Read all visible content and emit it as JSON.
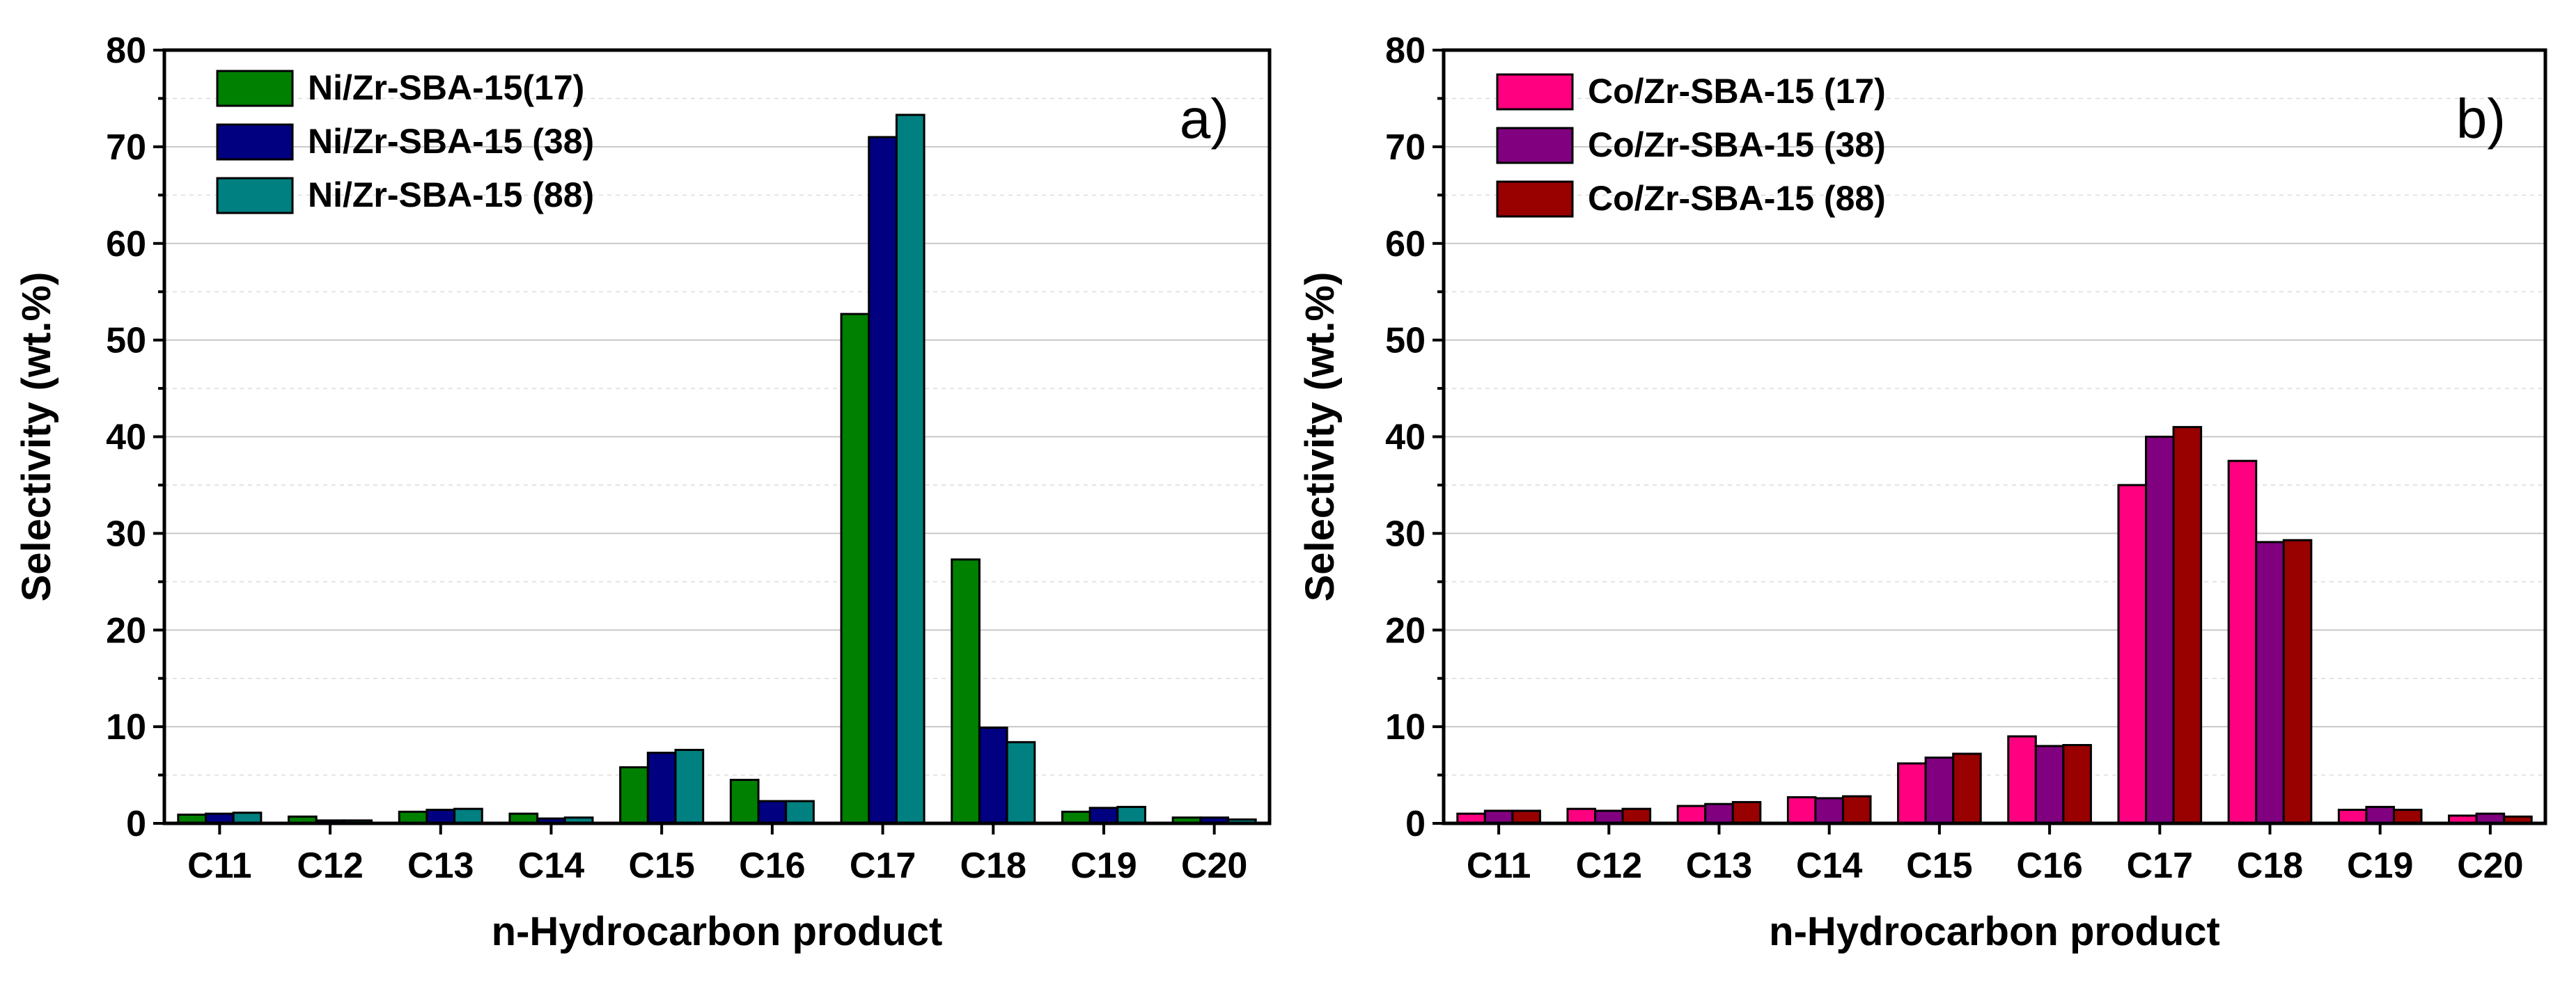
{
  "chart_data": [
    {
      "type": "bar",
      "panel_label": "a)",
      "categories": [
        "C11",
        "C12",
        "C13",
        "C14",
        "C15",
        "C16",
        "C17",
        "C18",
        "C19",
        "C20"
      ],
      "series": [
        {
          "name": "Ni/Zr-SBA-15(17)",
          "color": "#008000",
          "values": [
            0.9,
            0.7,
            1.2,
            1.0,
            5.8,
            4.5,
            52.7,
            27.3,
            1.2,
            0.6
          ]
        },
        {
          "name": "Ni/Zr-SBA-15 (38)",
          "color": "#000080",
          "values": [
            1.0,
            0.3,
            1.4,
            0.5,
            7.3,
            2.3,
            71.0,
            9.9,
            1.6,
            0.6
          ]
        },
        {
          "name": "Ni/Zr-SBA-15 (88)",
          "color": "#008080",
          "values": [
            1.1,
            0.3,
            1.5,
            0.6,
            7.6,
            2.3,
            73.3,
            8.4,
            1.7,
            0.4
          ]
        }
      ],
      "xlabel": "n-Hydrocarbon product",
      "ylabel": "Selectivity (wt.%)",
      "ylim": [
        0,
        80
      ],
      "yticks": [
        "0",
        "10",
        "20",
        "30",
        "40",
        "50",
        "60",
        "70",
        "80"
      ],
      "grid": true,
      "legend_position": "top-left"
    },
    {
      "type": "bar",
      "panel_label": "b)",
      "categories": [
        "C11",
        "C12",
        "C13",
        "C14",
        "C15",
        "C16",
        "C17",
        "C18",
        "C19",
        "C20"
      ],
      "series": [
        {
          "name": "Co/Zr-SBA-15 (17)",
          "color": "#ff0080",
          "values": [
            1.0,
            1.5,
            1.8,
            2.7,
            6.2,
            9.0,
            35.0,
            37.5,
            1.4,
            0.8
          ]
        },
        {
          "name": "Co/Zr-SBA-15 (38)",
          "color": "#800080",
          "values": [
            1.3,
            1.3,
            2.0,
            2.6,
            6.8,
            8.0,
            40.0,
            29.1,
            1.7,
            1.0
          ]
        },
        {
          "name": "Co/Zr-SBA-15 (88)",
          "color": "#990000",
          "values": [
            1.3,
            1.5,
            2.2,
            2.8,
            7.2,
            8.1,
            41.0,
            29.3,
            1.4,
            0.7
          ]
        }
      ],
      "xlabel": "n-Hydrocarbon product",
      "ylabel": "Selectivity (wt.%)",
      "ylim": [
        0,
        80
      ],
      "yticks": [
        "0",
        "10",
        "20",
        "30",
        "40",
        "50",
        "60",
        "70",
        "80"
      ],
      "grid": true,
      "legend_position": "top-left"
    }
  ]
}
